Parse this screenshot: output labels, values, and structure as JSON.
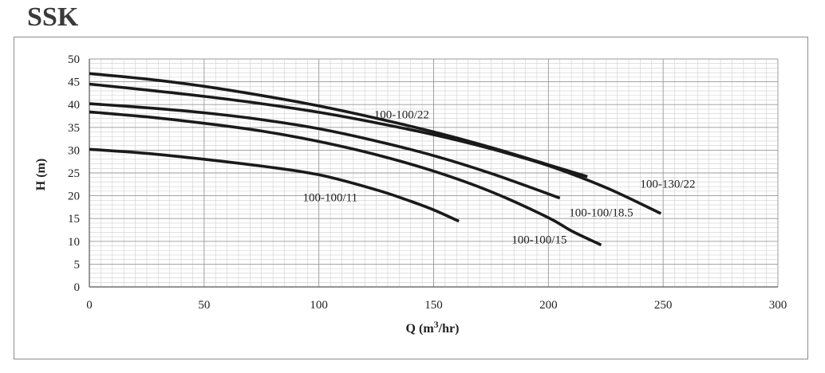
{
  "page": {
    "title": "SSK"
  },
  "chart_data": {
    "type": "line",
    "title": "",
    "xlabel_main": "Q (m",
    "xlabel_sup": "3",
    "xlabel_tail": "/hr)",
    "ylabel": "H (m)",
    "xlim": [
      0,
      300
    ],
    "ylim": [
      0,
      50
    ],
    "x_ticks": [
      0,
      50,
      100,
      150,
      200,
      250,
      300
    ],
    "y_ticks": [
      0,
      5,
      10,
      15,
      20,
      25,
      30,
      35,
      40,
      45,
      50
    ],
    "grid": true,
    "legend": "none",
    "line_color": "#1a1a1a",
    "grid_major_color": "#9a9a9a",
    "grid_minor_color": "#cfcfcf",
    "series": [
      {
        "name": "100-100/22",
        "x": [
          0,
          25,
          50,
          75,
          100,
          125,
          150,
          175,
          200,
          217
        ],
        "y": [
          46.8,
          45.6,
          44.0,
          42.0,
          39.7,
          37.0,
          34.0,
          30.6,
          26.8,
          24.2
        ]
      },
      {
        "name": "100-130/22",
        "x": [
          0,
          25,
          50,
          75,
          100,
          125,
          150,
          175,
          200,
          225,
          249
        ],
        "y": [
          44.5,
          43.2,
          41.8,
          40.2,
          38.3,
          36.0,
          33.4,
          30.3,
          26.6,
          21.8,
          16.1
        ]
      },
      {
        "name": "100-100/18.5",
        "x": [
          0,
          25,
          50,
          75,
          100,
          125,
          150,
          175,
          205
        ],
        "y": [
          40.2,
          39.3,
          38.2,
          36.7,
          34.7,
          32.0,
          28.8,
          24.9,
          19.5
        ]
      },
      {
        "name": "100-100/15",
        "x": [
          0,
          25,
          50,
          75,
          100,
          125,
          150,
          175,
          200,
          210,
          223
        ],
        "y": [
          38.4,
          37.3,
          35.9,
          34.2,
          31.9,
          29.0,
          25.4,
          20.9,
          15.2,
          12.3,
          9.2
        ]
      },
      {
        "name": "100-100/11",
        "x": [
          0,
          25,
          50,
          75,
          100,
          125,
          140,
          150,
          161
        ],
        "y": [
          30.2,
          29.3,
          28.0,
          26.5,
          24.6,
          21.3,
          18.8,
          16.9,
          14.4
        ]
      }
    ],
    "annotations": [
      {
        "text": "100-100/22",
        "x": 124,
        "y": 37.0
      },
      {
        "text": "100-130/22",
        "x": 240,
        "y": 21.8
      },
      {
        "text": "100-100/18.5",
        "x": 209,
        "y": 15.5
      },
      {
        "text": "100-100/15",
        "x": 184,
        "y": 9.5
      },
      {
        "text": "100-100/11",
        "x": 93,
        "y": 18.8
      }
    ]
  }
}
